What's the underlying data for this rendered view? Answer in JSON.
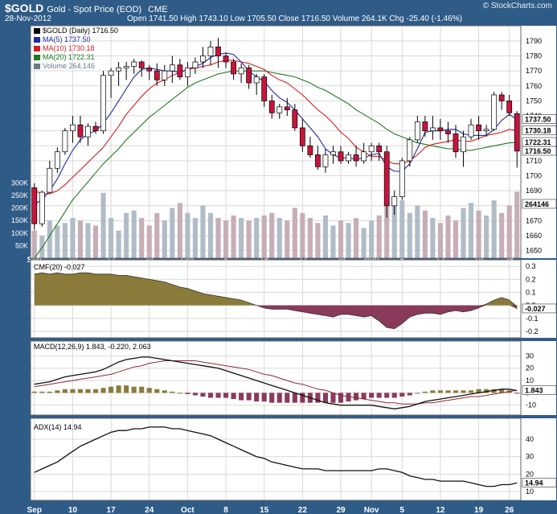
{
  "header": {
    "ticker": "$GOLD",
    "description": "Gold - Spot Price (EOD)",
    "exchange": "CME",
    "date": "28-Nov-2012",
    "ohlc_line": "Open 1741.50  High 1743.10  Low 1705.50  Close 1716.50  Volume 264.1K  Chg -25.40 (-1.46%)",
    "brand": "© StockCharts.com"
  },
  "colors": {
    "page_bg": "#2f5b87",
    "panel_bg": "#ffffff",
    "grid": "#d9d9d9",
    "up": "#ffffff",
    "down": "#c8143c",
    "ma5": "#1f2a9a",
    "ma10": "#d21e1e",
    "ma20": "#1f7a1f",
    "volume": "#c7aeb6",
    "volume_up": "#b0bcc8",
    "cmf_pos": "#8a7b3a",
    "cmf_neg": "#8a3a5a",
    "macd_line": "#111111",
    "signal_line": "#8a2a3a",
    "hist_pos": "#8a7b3a",
    "hist_neg": "#8a3a5a",
    "adx_line": "#111111"
  },
  "chart_data": [
    {
      "type": "candlestick",
      "title": "$GOLD (Daily) 1716.50",
      "ylim": [
        1645,
        1798
      ],
      "y_ticks": [
        1650,
        1660,
        1670,
        1680,
        1690,
        1700,
        1710,
        1720,
        1730,
        1740,
        1750,
        1760,
        1770,
        1780,
        1790
      ],
      "x_tick_labels": [
        "Sep",
        "10",
        "17",
        "24",
        "Oct",
        "8",
        "15",
        "22",
        "29",
        "Nov",
        "5",
        "12",
        "19",
        "26"
      ],
      "legend": [
        {
          "label": "$GOLD (Daily) 1716.50",
          "color": "#000000"
        },
        {
          "label": "MA(5) 1737.50",
          "color": "#1f2a9a"
        },
        {
          "label": "MA(10) 1730.18",
          "color": "#d21e1e"
        },
        {
          "label": "MA(20) 1722.31",
          "color": "#1f7a1f"
        },
        {
          "label": "Volume 264,146",
          "color": "#6a7a8a"
        }
      ],
      "right_tags": [
        {
          "label": "1737.50",
          "value": 1737.5
        },
        {
          "label": "1730.18",
          "value": 1730.18
        },
        {
          "label": "1722.31",
          "value": 1722.31
        },
        {
          "label": "1716.50",
          "value": 1716.5
        },
        {
          "label": "264146",
          "value": 1681
        }
      ],
      "candles": [
        [
          1692,
          1695,
          1664,
          1668
        ],
        [
          1668,
          1690,
          1666,
          1689
        ],
        [
          1689,
          1710,
          1688,
          1705
        ],
        [
          1705,
          1719,
          1702,
          1716
        ],
        [
          1716,
          1732,
          1714,
          1730
        ],
        [
          1730,
          1740,
          1722,
          1734
        ],
        [
          1734,
          1740,
          1722,
          1726
        ],
        [
          1726,
          1735,
          1720,
          1733
        ],
        [
          1733,
          1736,
          1728,
          1730
        ],
        [
          1730,
          1770,
          1728,
          1767
        ],
        [
          1767,
          1772,
          1752,
          1770
        ],
        [
          1770,
          1776,
          1760,
          1772
        ],
        [
          1772,
          1776,
          1764,
          1773
        ],
        [
          1773,
          1778,
          1768,
          1776
        ],
        [
          1776,
          1777,
          1766,
          1772
        ],
        [
          1772,
          1774,
          1764,
          1770
        ],
        [
          1770,
          1775,
          1760,
          1764
        ],
        [
          1764,
          1774,
          1760,
          1770
        ],
        [
          1770,
          1780,
          1762,
          1774
        ],
        [
          1774,
          1778,
          1764,
          1766
        ],
        [
          1766,
          1776,
          1760,
          1772
        ],
        [
          1772,
          1779,
          1768,
          1776
        ],
        [
          1776,
          1786,
          1772,
          1780
        ],
        [
          1780,
          1790,
          1774,
          1786
        ],
        [
          1786,
          1792,
          1772,
          1780
        ],
        [
          1780,
          1782,
          1772,
          1776
        ],
        [
          1776,
          1778,
          1764,
          1768
        ],
        [
          1768,
          1775,
          1762,
          1772
        ],
        [
          1772,
          1774,
          1758,
          1762
        ],
        [
          1762,
          1768,
          1754,
          1766
        ],
        [
          1766,
          1768,
          1746,
          1750
        ],
        [
          1750,
          1754,
          1738,
          1742
        ],
        [
          1742,
          1748,
          1738,
          1746
        ],
        [
          1746,
          1752,
          1740,
          1744
        ],
        [
          1744,
          1748,
          1730,
          1732
        ],
        [
          1732,
          1738,
          1716,
          1720
        ],
        [
          1720,
          1726,
          1712,
          1714
        ],
        [
          1714,
          1720,
          1704,
          1706
        ],
        [
          1706,
          1718,
          1702,
          1714
        ],
        [
          1714,
          1720,
          1708,
          1716
        ],
        [
          1716,
          1720,
          1708,
          1710
        ],
        [
          1710,
          1716,
          1708,
          1714
        ],
        [
          1714,
          1720,
          1706,
          1710
        ],
        [
          1710,
          1722,
          1708,
          1716
        ],
        [
          1716,
          1722,
          1710,
          1720
        ],
        [
          1720,
          1722,
          1710,
          1716
        ],
        [
          1716,
          1720,
          1672,
          1680
        ],
        [
          1680,
          1690,
          1674,
          1686
        ],
        [
          1686,
          1712,
          1684,
          1710
        ],
        [
          1710,
          1726,
          1706,
          1724
        ],
        [
          1724,
          1740,
          1722,
          1736
        ],
        [
          1736,
          1740,
          1726,
          1730
        ],
        [
          1730,
          1740,
          1724,
          1732
        ],
        [
          1732,
          1738,
          1724,
          1730
        ],
        [
          1730,
          1736,
          1722,
          1728
        ],
        [
          1728,
          1734,
          1712,
          1716
        ],
        [
          1716,
          1730,
          1706,
          1726
        ],
        [
          1726,
          1738,
          1724,
          1734
        ],
        [
          1734,
          1740,
          1724,
          1730
        ],
        [
          1730,
          1734,
          1726,
          1731
        ],
        [
          1731,
          1756,
          1730,
          1754
        ],
        [
          1754,
          1756,
          1744,
          1750
        ],
        [
          1750,
          1754,
          1740,
          1742
        ],
        [
          1741.5,
          1743.1,
          1705.5,
          1716.5
        ]
      ],
      "ma5": [
        1681,
        1684,
        1690,
        1698,
        1708,
        1717,
        1724,
        1728,
        1730,
        1735,
        1742,
        1750,
        1758,
        1766,
        1771,
        1772,
        1771,
        1770,
        1770,
        1769,
        1771,
        1773,
        1775,
        1779,
        1781,
        1782,
        1781,
        1776,
        1770,
        1766,
        1763,
        1757,
        1752,
        1749,
        1744,
        1738,
        1732,
        1726,
        1718,
        1714,
        1712,
        1712,
        1711,
        1712,
        1714,
        1715,
        1706,
        1703,
        1703,
        1708,
        1718,
        1729,
        1730,
        1730,
        1731,
        1731,
        1728,
        1727,
        1727,
        1727,
        1731,
        1737,
        1741,
        1737.5
      ],
      "ma10": [
        1690,
        1688,
        1688,
        1690,
        1694,
        1699,
        1704,
        1709,
        1714,
        1719,
        1726,
        1733,
        1741,
        1747,
        1753,
        1758,
        1762,
        1764,
        1767,
        1769,
        1771,
        1772,
        1773,
        1774,
        1776,
        1777,
        1777,
        1776,
        1775,
        1773,
        1771,
        1767,
        1764,
        1762,
        1758,
        1754,
        1749,
        1744,
        1740,
        1735,
        1729,
        1725,
        1719,
        1716,
        1713,
        1713,
        1710,
        1708,
        1708,
        1710,
        1714,
        1719,
        1721,
        1722,
        1723,
        1724,
        1723,
        1723,
        1725,
        1727,
        1728,
        1729,
        1731,
        1730.18
      ],
      "ma20": [
        1645,
        1652,
        1660,
        1668,
        1676,
        1684,
        1690,
        1696,
        1702,
        1708,
        1713,
        1718,
        1724,
        1729,
        1734,
        1739,
        1743,
        1747,
        1751,
        1755,
        1759,
        1762,
        1764,
        1766,
        1768,
        1769,
        1770,
        1770,
        1770,
        1770,
        1770,
        1769,
        1768,
        1767,
        1766,
        1764,
        1762,
        1759,
        1757,
        1754,
        1751,
        1748,
        1744,
        1741,
        1738,
        1735,
        1731,
        1728,
        1726,
        1724,
        1722,
        1721,
        1720,
        1719,
        1718,
        1718,
        1717,
        1717,
        1718,
        1719,
        1720,
        1721,
        1722,
        1722.31
      ]
    },
    {
      "type": "bar",
      "title": "Volume 264,146",
      "ylim": [
        0,
        320000
      ],
      "y_ticks": [
        50000,
        100000,
        150000,
        200000,
        250000,
        300000
      ],
      "y_tick_labels": [
        "50K",
        "100K",
        "150K",
        "200K",
        "250K",
        "300K"
      ],
      "values": [
        110000,
        90000,
        150000,
        130000,
        140000,
        160000,
        150000,
        140000,
        130000,
        260000,
        160000,
        110000,
        180000,
        190000,
        160000,
        130000,
        180000,
        150000,
        200000,
        220000,
        180000,
        160000,
        210000,
        180000,
        160000,
        150000,
        170000,
        160000,
        150000,
        160000,
        170000,
        180000,
        160000,
        150000,
        200000,
        180000,
        160000,
        140000,
        170000,
        130000,
        150000,
        140000,
        160000,
        120000,
        150000,
        170000,
        240000,
        210000,
        230000,
        180000,
        210000,
        190000,
        160000,
        140000,
        170000,
        150000,
        200000,
        220000,
        190000,
        170000,
        230000,
        180000,
        210000,
        264146
      ]
    },
    {
      "type": "area",
      "title": "CMF(20) -0.027",
      "ylim": [
        -0.25,
        0.35
      ],
      "y_ticks": [
        -0.2,
        -0.1,
        0.0,
        0.1,
        0.2,
        0.3
      ],
      "current": -0.027,
      "values": [
        0.24,
        0.25,
        0.24,
        0.25,
        0.24,
        0.24,
        0.25,
        0.25,
        0.24,
        0.24,
        0.24,
        0.23,
        0.23,
        0.22,
        0.21,
        0.2,
        0.19,
        0.18,
        0.16,
        0.14,
        0.13,
        0.11,
        0.09,
        0.08,
        0.07,
        0.06,
        0.05,
        0.04,
        0.02,
        0.0,
        -0.02,
        -0.03,
        -0.03,
        -0.03,
        -0.04,
        -0.05,
        -0.06,
        -0.07,
        -0.08,
        -0.09,
        -0.07,
        -0.07,
        -0.08,
        -0.09,
        -0.08,
        -0.12,
        -0.17,
        -0.18,
        -0.14,
        -0.09,
        -0.07,
        -0.06,
        -0.06,
        -0.07,
        -0.05,
        -0.04,
        -0.05,
        -0.04,
        -0.02,
        0.01,
        0.04,
        0.06,
        0.04,
        -0.027
      ]
    },
    {
      "type": "line",
      "title": "MACD(12,26,9) 1.843, -0.220, 2.063",
      "ylim": [
        -18,
        42
      ],
      "y_ticks": [
        -10,
        0,
        10,
        20,
        30
      ],
      "series": [
        {
          "name": "MACD",
          "values": [
            7,
            8,
            9,
            11,
            13,
            14,
            15,
            16,
            17,
            19,
            22,
            25,
            27,
            28,
            29,
            29,
            28,
            27,
            26,
            25,
            24,
            23,
            22,
            21,
            20,
            18,
            16,
            14,
            12,
            10,
            8,
            6,
            4,
            2,
            0,
            -2,
            -4,
            -6,
            -8,
            -9,
            -10,
            -10,
            -10,
            -10,
            -10,
            -11,
            -12,
            -13,
            -12,
            -11,
            -9,
            -7,
            -6,
            -5,
            -4,
            -3,
            -2,
            -1,
            0,
            1,
            2,
            3,
            3,
            1.843
          ]
        },
        {
          "name": "Signal",
          "values": [
            5,
            6,
            7,
            8,
            9,
            10,
            11,
            12,
            13,
            14,
            15,
            17,
            19,
            21,
            22,
            24,
            25,
            26,
            26,
            26,
            26,
            26,
            25,
            24,
            23,
            22,
            21,
            20,
            19,
            17,
            15,
            14,
            12,
            10,
            8,
            7,
            5,
            3,
            2,
            0,
            -2,
            -3,
            -4,
            -5,
            -6,
            -7,
            -8,
            -8,
            -9,
            -9,
            -9,
            -8,
            -8,
            -7,
            -6,
            -5,
            -4,
            -3,
            -3,
            -2,
            -1,
            0,
            1,
            2.063
          ]
        }
      ],
      "histogram": [
        1,
        1,
        1,
        2,
        3,
        3,
        3,
        3,
        3,
        4,
        5,
        6,
        6,
        5,
        5,
        4,
        3,
        2,
        1,
        0,
        -1,
        -2,
        -3,
        -4,
        -4,
        -4,
        -5,
        -6,
        -6,
        -7,
        -7,
        -8,
        -8,
        -8,
        -8,
        -8,
        -8,
        -8,
        -8,
        -8,
        -8,
        -7,
        -6,
        -5,
        -4,
        -4,
        -4,
        -4,
        -3,
        -2,
        0,
        1,
        2,
        2,
        2,
        2,
        2,
        2,
        3,
        3,
        3,
        3,
        2,
        -0.22
      ]
    },
    {
      "type": "line",
      "title": "ADX(14) 14.94",
      "ylim": [
        5,
        52
      ],
      "y_ticks": [
        10,
        20,
        30,
        40
      ],
      "current": 14.94,
      "values": [
        21,
        23,
        25,
        27,
        30,
        33,
        36,
        38,
        40,
        42,
        44,
        45,
        45,
        46,
        46,
        47,
        47,
        47,
        46,
        46,
        45,
        44,
        43,
        42,
        40,
        38,
        36,
        34,
        32,
        30,
        29,
        27,
        26,
        25,
        24,
        23,
        23,
        23,
        22,
        22,
        22,
        22,
        22,
        22,
        22,
        23,
        23,
        22,
        21,
        19,
        18,
        17,
        17,
        16,
        16,
        16,
        16,
        15,
        14,
        13,
        13,
        14,
        14,
        14.94
      ]
    }
  ]
}
